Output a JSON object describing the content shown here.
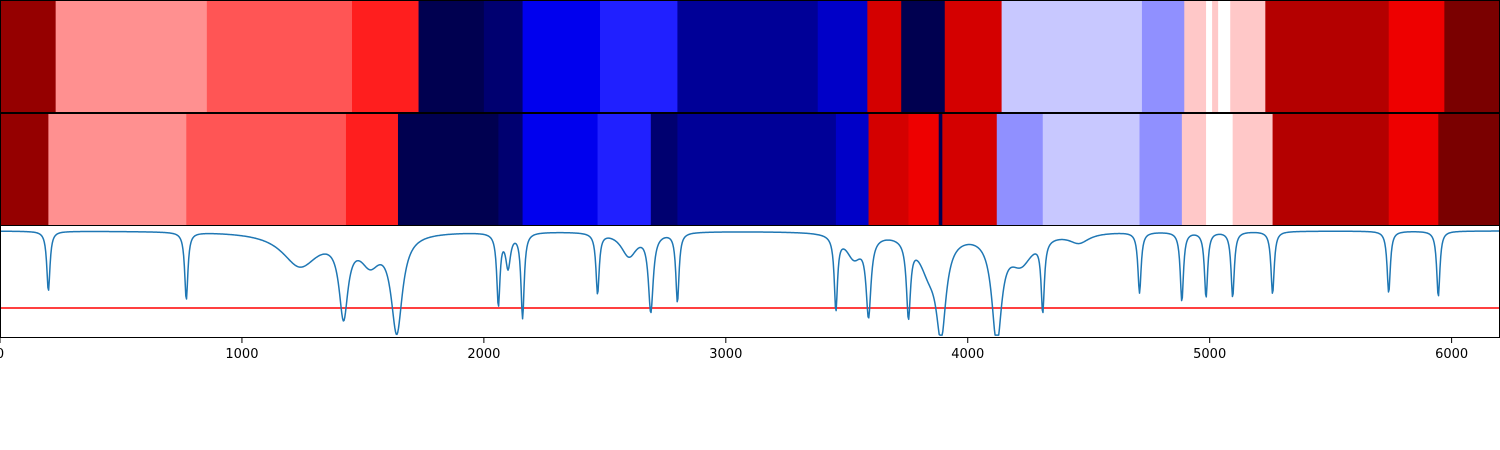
{
  "chart_data": {
    "type": "heatmap",
    "title": "",
    "xlabel": "",
    "ylabel": "",
    "xlim": [
      0,
      6200
    ],
    "xticks": [
      0,
      1000,
      2000,
      3000,
      4000,
      5000,
      6000
    ],
    "tick_labels": [
      "0",
      "1000",
      "2000",
      "3000",
      "4000",
      "5000",
      "6000"
    ],
    "colormap": "seismic",
    "grid": false,
    "legend": "none",
    "segment_rows": [
      {
        "segments": [
          {
            "start": 0,
            "end": 230,
            "color": "#950000"
          },
          {
            "start": 230,
            "end": 855,
            "color": "#ff9090"
          },
          {
            "start": 855,
            "end": 1455,
            "color": "#ff5555"
          },
          {
            "start": 1455,
            "end": 1730,
            "color": "#ff1e1e"
          },
          {
            "start": 1730,
            "end": 2000,
            "color": "#000050"
          },
          {
            "start": 2000,
            "end": 2160,
            "color": "#000070"
          },
          {
            "start": 2160,
            "end": 2480,
            "color": "#0000ee"
          },
          {
            "start": 2480,
            "end": 2800,
            "color": "#2020ff"
          },
          {
            "start": 2800,
            "end": 3380,
            "color": "#000097"
          },
          {
            "start": 3380,
            "end": 3585,
            "color": "#0000c8"
          },
          {
            "start": 3585,
            "end": 3725,
            "color": "#d40000"
          },
          {
            "start": 3725,
            "end": 3905,
            "color": "#000050"
          },
          {
            "start": 3905,
            "end": 4140,
            "color": "#d40000"
          },
          {
            "start": 4140,
            "end": 4720,
            "color": "#c8c8ff"
          },
          {
            "start": 4720,
            "end": 4895,
            "color": "#9090ff"
          },
          {
            "start": 4895,
            "end": 4985,
            "color": "#ffc8c8"
          },
          {
            "start": 4985,
            "end": 5010,
            "color": "#ffffff"
          },
          {
            "start": 5010,
            "end": 5035,
            "color": "#ffc8c8"
          },
          {
            "start": 5035,
            "end": 5085,
            "color": "#ffffff"
          },
          {
            "start": 5085,
            "end": 5230,
            "color": "#ffc8c8"
          },
          {
            "start": 5230,
            "end": 5740,
            "color": "#b40000"
          },
          {
            "start": 5740,
            "end": 5970,
            "color": "#ee0000"
          },
          {
            "start": 5970,
            "end": 6200,
            "color": "#7a0000"
          }
        ]
      },
      {
        "segments": [
          {
            "start": 0,
            "end": 200,
            "color": "#950000"
          },
          {
            "start": 200,
            "end": 770,
            "color": "#ff9090"
          },
          {
            "start": 770,
            "end": 1430,
            "color": "#ff5555"
          },
          {
            "start": 1430,
            "end": 1645,
            "color": "#ff1e1e"
          },
          {
            "start": 1645,
            "end": 2060,
            "color": "#000050"
          },
          {
            "start": 2060,
            "end": 2160,
            "color": "#000070"
          },
          {
            "start": 2160,
            "end": 2470,
            "color": "#0000ee"
          },
          {
            "start": 2470,
            "end": 2690,
            "color": "#2020ff"
          },
          {
            "start": 2690,
            "end": 2800,
            "color": "#000070"
          },
          {
            "start": 2800,
            "end": 3455,
            "color": "#000097"
          },
          {
            "start": 3455,
            "end": 3590,
            "color": "#0000c8"
          },
          {
            "start": 3590,
            "end": 3755,
            "color": "#d40000"
          },
          {
            "start": 3755,
            "end": 3880,
            "color": "#ee0000"
          },
          {
            "start": 3880,
            "end": 3895,
            "color": "#000050"
          },
          {
            "start": 3895,
            "end": 4120,
            "color": "#d40000"
          },
          {
            "start": 4120,
            "end": 4310,
            "color": "#9090ff"
          },
          {
            "start": 4310,
            "end": 4710,
            "color": "#c8c8ff"
          },
          {
            "start": 4710,
            "end": 4885,
            "color": "#9090ff"
          },
          {
            "start": 4885,
            "end": 4985,
            "color": "#ffc8c8"
          },
          {
            "start": 4985,
            "end": 5095,
            "color": "#ffffff"
          },
          {
            "start": 5095,
            "end": 5260,
            "color": "#ffc8c8"
          },
          {
            "start": 5260,
            "end": 5740,
            "color": "#b40000"
          },
          {
            "start": 5740,
            "end": 5945,
            "color": "#ee0000"
          },
          {
            "start": 5945,
            "end": 6200,
            "color": "#7a0000"
          }
        ]
      }
    ],
    "line_panel": {
      "ylim": [
        -1.1,
        0.05
      ],
      "series_color": "#1f77b4",
      "threshold": {
        "y": -0.8,
        "color": "#ff0000"
      },
      "baseline": 0,
      "dips": [
        {
          "x": 200,
          "depth": -0.62,
          "width": 8
        },
        {
          "x": 770,
          "depth": -0.7,
          "width": 8
        },
        {
          "x": 1240,
          "depth": -0.35,
          "width": 90
        },
        {
          "x": 1420,
          "depth": -0.8,
          "width": 22
        },
        {
          "x": 1530,
          "depth": -0.28,
          "width": 50
        },
        {
          "x": 1640,
          "depth": -1.0,
          "width": 28
        },
        {
          "x": 2060,
          "depth": -0.74,
          "width": 8
        },
        {
          "x": 2100,
          "depth": -0.35,
          "width": 12
        },
        {
          "x": 2160,
          "depth": -0.88,
          "width": 8
        },
        {
          "x": 2470,
          "depth": -0.63,
          "width": 8
        },
        {
          "x": 2600,
          "depth": -0.25,
          "width": 40
        },
        {
          "x": 2690,
          "depth": -0.8,
          "width": 12
        },
        {
          "x": 2800,
          "depth": -0.72,
          "width": 8
        },
        {
          "x": 3455,
          "depth": -0.76,
          "width": 8
        },
        {
          "x": 3530,
          "depth": -0.25,
          "width": 40
        },
        {
          "x": 3590,
          "depth": -0.8,
          "width": 12
        },
        {
          "x": 3755,
          "depth": -0.78,
          "width": 10
        },
        {
          "x": 3840,
          "depth": -0.35,
          "width": 50
        },
        {
          "x": 3890,
          "depth": -0.93,
          "width": 24
        },
        {
          "x": 4120,
          "depth": -1.08,
          "width": 24
        },
        {
          "x": 4220,
          "depth": -0.3,
          "width": 60
        },
        {
          "x": 4310,
          "depth": -0.73,
          "width": 8
        },
        {
          "x": 4460,
          "depth": -0.1,
          "width": 50
        },
        {
          "x": 4710,
          "depth": -0.63,
          "width": 8
        },
        {
          "x": 4885,
          "depth": -0.72,
          "width": 8
        },
        {
          "x": 4985,
          "depth": -0.68,
          "width": 8
        },
        {
          "x": 5095,
          "depth": -0.68,
          "width": 8
        },
        {
          "x": 5260,
          "depth": -0.65,
          "width": 8
        },
        {
          "x": 5740,
          "depth": -0.64,
          "width": 8
        },
        {
          "x": 5945,
          "depth": -0.68,
          "width": 8
        }
      ]
    }
  }
}
